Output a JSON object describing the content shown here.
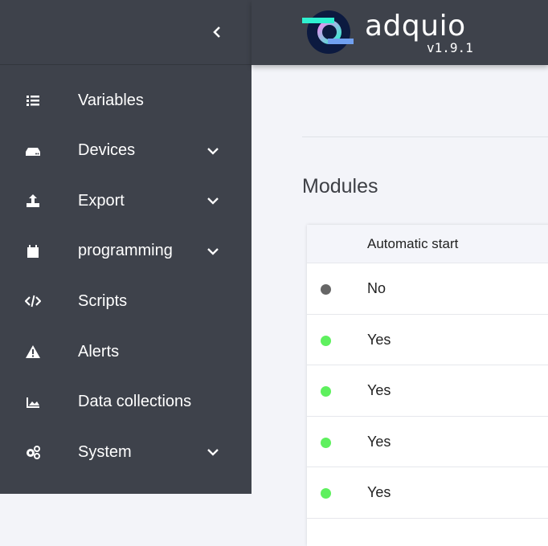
{
  "app": {
    "name": "adquio",
    "version": "v1.9.1"
  },
  "sidebar": {
    "items": [
      {
        "label": "Variables",
        "icon": "list-icon",
        "expandable": false
      },
      {
        "label": "Devices",
        "icon": "hdd-icon",
        "expandable": true
      },
      {
        "label": "Export",
        "icon": "upload-icon",
        "expandable": true
      },
      {
        "label": "programming",
        "icon": "calendar-icon",
        "expandable": true
      },
      {
        "label": "Scripts",
        "icon": "code-icon",
        "expandable": false
      },
      {
        "label": "Alerts",
        "icon": "warning-icon",
        "expandable": false
      },
      {
        "label": "Data collections",
        "icon": "area-chart-icon",
        "expandable": false
      },
      {
        "label": "System",
        "icon": "cogs-icon",
        "expandable": true
      }
    ]
  },
  "main": {
    "title": "Modules",
    "table": {
      "header": "Automatic start",
      "rows": [
        {
          "status_color": "#666666",
          "value": "No"
        },
        {
          "status_color": "#5ef05e",
          "value": "Yes"
        },
        {
          "status_color": "#5ef05e",
          "value": "Yes"
        },
        {
          "status_color": "#5ef05e",
          "value": "Yes"
        },
        {
          "status_color": "#5ef05e",
          "value": "Yes"
        }
      ]
    }
  }
}
